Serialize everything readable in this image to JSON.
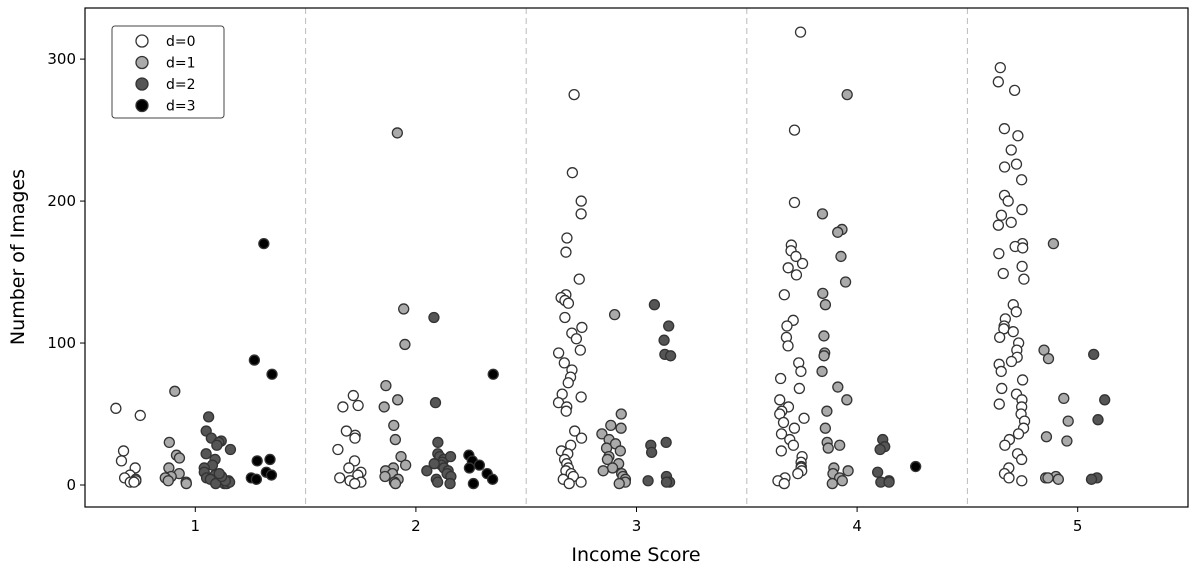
{
  "chart_data": {
    "type": "scatter",
    "subtype": "strip",
    "title": "",
    "xlabel": "Income Score",
    "ylabel": "Number of Images",
    "categories": [
      "1",
      "2",
      "3",
      "4",
      "5"
    ],
    "xlim": [
      0.5,
      5.5
    ],
    "ylim": [
      -15.5,
      336
    ],
    "yticks": [
      0,
      100,
      200,
      300
    ],
    "grid": false,
    "category_separators": "dashed",
    "legend": {
      "placement": "top-left",
      "entries": [
        "d=0",
        "d=1",
        "d=2",
        "d=3"
      ]
    },
    "series": [
      {
        "name": "d=0",
        "color": "#ffffff",
        "offset": -0.3,
        "values": [
          [
            54,
            49,
            24,
            17,
            12,
            7,
            5,
            4,
            3,
            2,
            2
          ],
          [
            63,
            56,
            55,
            38,
            35,
            33,
            25,
            17,
            12,
            9,
            7,
            5,
            3,
            2,
            1
          ],
          [
            275,
            220,
            200,
            191,
            174,
            164,
            145,
            134,
            132,
            130,
            128,
            118,
            111,
            107,
            103,
            95,
            93,
            86,
            81,
            76,
            72,
            64,
            62,
            58,
            55,
            52,
            38,
            33,
            28,
            24,
            22,
            18,
            15,
            12,
            10,
            8,
            6,
            4,
            2,
            1
          ],
          [
            319,
            250,
            199,
            169,
            165,
            161,
            156,
            153,
            148,
            134,
            116,
            112,
            104,
            98,
            86,
            80,
            75,
            68,
            60,
            55,
            52,
            50,
            47,
            44,
            40,
            36,
            32,
            28,
            24,
            20,
            16,
            13,
            12,
            10,
            8,
            5,
            3,
            1
          ],
          [
            294,
            284,
            278,
            251,
            246,
            236,
            226,
            224,
            215,
            204,
            200,
            194,
            190,
            185,
            183,
            170,
            168,
            167,
            163,
            154,
            149,
            145,
            127,
            122,
            117,
            112,
            110,
            108,
            104,
            100,
            95,
            90,
            87,
            85,
            80,
            74,
            68,
            64,
            60,
            57,
            55,
            50,
            45,
            40,
            36,
            32,
            28,
            22,
            18,
            12,
            8,
            5,
            3
          ]
        ]
      },
      {
        "name": "d=1",
        "color": "#aaaaaa",
        "offset": -0.1,
        "values": [
          [
            66,
            30,
            21,
            19,
            12,
            8,
            6,
            5,
            3,
            2,
            1
          ],
          [
            248,
            124,
            99,
            70,
            60,
            55,
            42,
            32,
            20,
            14,
            12,
            10,
            8,
            6,
            4,
            2,
            1
          ],
          [
            120,
            50,
            42,
            40,
            36,
            32,
            29,
            26,
            24,
            20,
            18,
            15,
            12,
            10,
            8,
            6,
            4,
            2,
            1
          ],
          [
            275,
            191,
            180,
            178,
            161,
            143,
            135,
            127,
            105,
            93,
            91,
            80,
            69,
            60,
            52,
            40,
            30,
            28,
            26,
            12,
            10,
            8,
            5,
            3,
            1
          ],
          [
            170,
            95,
            89,
            61,
            45,
            34,
            31,
            6,
            5,
            5,
            4
          ]
        ]
      },
      {
        "name": "d=2",
        "color": "#555555",
        "offset": 0.1,
        "values": [
          [
            48,
            38,
            33,
            31,
            30,
            28,
            25,
            22,
            18,
            14,
            12,
            9,
            7,
            5,
            4,
            3,
            2,
            1,
            1,
            1,
            2,
            3,
            6,
            8
          ],
          [
            118,
            58,
            30,
            22,
            20,
            18,
            16,
            14,
            12,
            10,
            8,
            6,
            4,
            2,
            1,
            20,
            15,
            10
          ],
          [
            127,
            112,
            102,
            92,
            91,
            30,
            28,
            23,
            6,
            3,
            2,
            2
          ],
          [
            32,
            27,
            25,
            9,
            3,
            2,
            2
          ],
          [
            92,
            60,
            46,
            5,
            4
          ]
        ]
      },
      {
        "name": "d=3",
        "color": "#000000",
        "offset": 0.3,
        "values": [
          [
            170,
            88,
            78,
            18,
            17,
            9,
            7,
            5,
            4
          ],
          [
            78,
            21,
            17,
            14,
            12,
            8,
            4,
            1
          ],
          [],
          [
            13
          ],
          []
        ]
      }
    ]
  }
}
